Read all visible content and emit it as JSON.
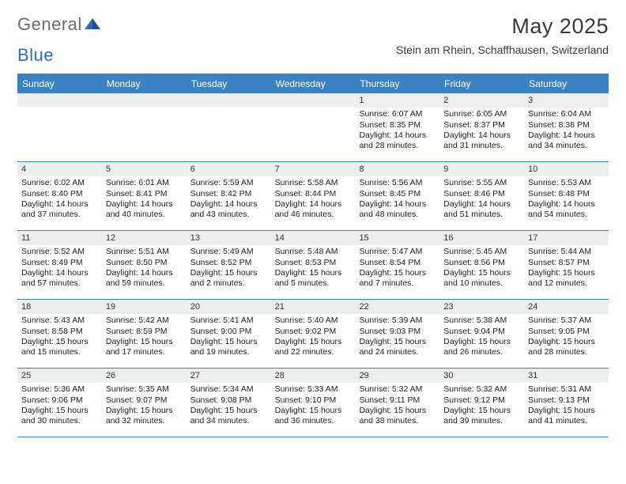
{
  "brand": {
    "part1": "General",
    "part2": "Blue"
  },
  "title": "May 2025",
  "location": "Stein am Rhein, Schaffhausen, Switzerland",
  "colors": {
    "header_bar": "#3b82c4",
    "daynum_bg": "#eceded",
    "text": "#222222",
    "brand_gray": "#6b6b6b",
    "brand_blue": "#2f6fb0"
  },
  "weekdays": [
    "Sunday",
    "Monday",
    "Tuesday",
    "Wednesday",
    "Thursday",
    "Friday",
    "Saturday"
  ],
  "weeks": [
    [
      {
        "empty": true
      },
      {
        "empty": true
      },
      {
        "empty": true
      },
      {
        "empty": true
      },
      {
        "day": "1",
        "sunrise": "Sunrise: 6:07 AM",
        "sunset": "Sunset: 8:35 PM",
        "daylight1": "Daylight: 14 hours",
        "daylight2": "and 28 minutes."
      },
      {
        "day": "2",
        "sunrise": "Sunrise: 6:05 AM",
        "sunset": "Sunset: 8:37 PM",
        "daylight1": "Daylight: 14 hours",
        "daylight2": "and 31 minutes."
      },
      {
        "day": "3",
        "sunrise": "Sunrise: 6:04 AM",
        "sunset": "Sunset: 8:38 PM",
        "daylight1": "Daylight: 14 hours",
        "daylight2": "and 34 minutes."
      }
    ],
    [
      {
        "day": "4",
        "sunrise": "Sunrise: 6:02 AM",
        "sunset": "Sunset: 8:40 PM",
        "daylight1": "Daylight: 14 hours",
        "daylight2": "and 37 minutes."
      },
      {
        "day": "5",
        "sunrise": "Sunrise: 6:01 AM",
        "sunset": "Sunset: 8:41 PM",
        "daylight1": "Daylight: 14 hours",
        "daylight2": "and 40 minutes."
      },
      {
        "day": "6",
        "sunrise": "Sunrise: 5:59 AM",
        "sunset": "Sunset: 8:42 PM",
        "daylight1": "Daylight: 14 hours",
        "daylight2": "and 43 minutes."
      },
      {
        "day": "7",
        "sunrise": "Sunrise: 5:58 AM",
        "sunset": "Sunset: 8:44 PM",
        "daylight1": "Daylight: 14 hours",
        "daylight2": "and 46 minutes."
      },
      {
        "day": "8",
        "sunrise": "Sunrise: 5:56 AM",
        "sunset": "Sunset: 8:45 PM",
        "daylight1": "Daylight: 14 hours",
        "daylight2": "and 48 minutes."
      },
      {
        "day": "9",
        "sunrise": "Sunrise: 5:55 AM",
        "sunset": "Sunset: 8:46 PM",
        "daylight1": "Daylight: 14 hours",
        "daylight2": "and 51 minutes."
      },
      {
        "day": "10",
        "sunrise": "Sunrise: 5:53 AM",
        "sunset": "Sunset: 8:48 PM",
        "daylight1": "Daylight: 14 hours",
        "daylight2": "and 54 minutes."
      }
    ],
    [
      {
        "day": "11",
        "sunrise": "Sunrise: 5:52 AM",
        "sunset": "Sunset: 8:49 PM",
        "daylight1": "Daylight: 14 hours",
        "daylight2": "and 57 minutes."
      },
      {
        "day": "12",
        "sunrise": "Sunrise: 5:51 AM",
        "sunset": "Sunset: 8:50 PM",
        "daylight1": "Daylight: 14 hours",
        "daylight2": "and 59 minutes."
      },
      {
        "day": "13",
        "sunrise": "Sunrise: 5:49 AM",
        "sunset": "Sunset: 8:52 PM",
        "daylight1": "Daylight: 15 hours",
        "daylight2": "and 2 minutes."
      },
      {
        "day": "14",
        "sunrise": "Sunrise: 5:48 AM",
        "sunset": "Sunset: 8:53 PM",
        "daylight1": "Daylight: 15 hours",
        "daylight2": "and 5 minutes."
      },
      {
        "day": "15",
        "sunrise": "Sunrise: 5:47 AM",
        "sunset": "Sunset: 8:54 PM",
        "daylight1": "Daylight: 15 hours",
        "daylight2": "and 7 minutes."
      },
      {
        "day": "16",
        "sunrise": "Sunrise: 5:45 AM",
        "sunset": "Sunset: 8:56 PM",
        "daylight1": "Daylight: 15 hours",
        "daylight2": "and 10 minutes."
      },
      {
        "day": "17",
        "sunrise": "Sunrise: 5:44 AM",
        "sunset": "Sunset: 8:57 PM",
        "daylight1": "Daylight: 15 hours",
        "daylight2": "and 12 minutes."
      }
    ],
    [
      {
        "day": "18",
        "sunrise": "Sunrise: 5:43 AM",
        "sunset": "Sunset: 8:58 PM",
        "daylight1": "Daylight: 15 hours",
        "daylight2": "and 15 minutes."
      },
      {
        "day": "19",
        "sunrise": "Sunrise: 5:42 AM",
        "sunset": "Sunset: 8:59 PM",
        "daylight1": "Daylight: 15 hours",
        "daylight2": "and 17 minutes."
      },
      {
        "day": "20",
        "sunrise": "Sunrise: 5:41 AM",
        "sunset": "Sunset: 9:00 PM",
        "daylight1": "Daylight: 15 hours",
        "daylight2": "and 19 minutes."
      },
      {
        "day": "21",
        "sunrise": "Sunrise: 5:40 AM",
        "sunset": "Sunset: 9:02 PM",
        "daylight1": "Daylight: 15 hours",
        "daylight2": "and 22 minutes."
      },
      {
        "day": "22",
        "sunrise": "Sunrise: 5:39 AM",
        "sunset": "Sunset: 9:03 PM",
        "daylight1": "Daylight: 15 hours",
        "daylight2": "and 24 minutes."
      },
      {
        "day": "23",
        "sunrise": "Sunrise: 5:38 AM",
        "sunset": "Sunset: 9:04 PM",
        "daylight1": "Daylight: 15 hours",
        "daylight2": "and 26 minutes."
      },
      {
        "day": "24",
        "sunrise": "Sunrise: 5:37 AM",
        "sunset": "Sunset: 9:05 PM",
        "daylight1": "Daylight: 15 hours",
        "daylight2": "and 28 minutes."
      }
    ],
    [
      {
        "day": "25",
        "sunrise": "Sunrise: 5:36 AM",
        "sunset": "Sunset: 9:06 PM",
        "daylight1": "Daylight: 15 hours",
        "daylight2": "and 30 minutes."
      },
      {
        "day": "26",
        "sunrise": "Sunrise: 5:35 AM",
        "sunset": "Sunset: 9:07 PM",
        "daylight1": "Daylight: 15 hours",
        "daylight2": "and 32 minutes."
      },
      {
        "day": "27",
        "sunrise": "Sunrise: 5:34 AM",
        "sunset": "Sunset: 9:08 PM",
        "daylight1": "Daylight: 15 hours",
        "daylight2": "and 34 minutes."
      },
      {
        "day": "28",
        "sunrise": "Sunrise: 5:33 AM",
        "sunset": "Sunset: 9:10 PM",
        "daylight1": "Daylight: 15 hours",
        "daylight2": "and 36 minutes."
      },
      {
        "day": "29",
        "sunrise": "Sunrise: 5:32 AM",
        "sunset": "Sunset: 9:11 PM",
        "daylight1": "Daylight: 15 hours",
        "daylight2": "and 38 minutes."
      },
      {
        "day": "30",
        "sunrise": "Sunrise: 5:32 AM",
        "sunset": "Sunset: 9:12 PM",
        "daylight1": "Daylight: 15 hours",
        "daylight2": "and 39 minutes."
      },
      {
        "day": "31",
        "sunrise": "Sunrise: 5:31 AM",
        "sunset": "Sunset: 9:13 PM",
        "daylight1": "Daylight: 15 hours",
        "daylight2": "and 41 minutes."
      }
    ]
  ]
}
